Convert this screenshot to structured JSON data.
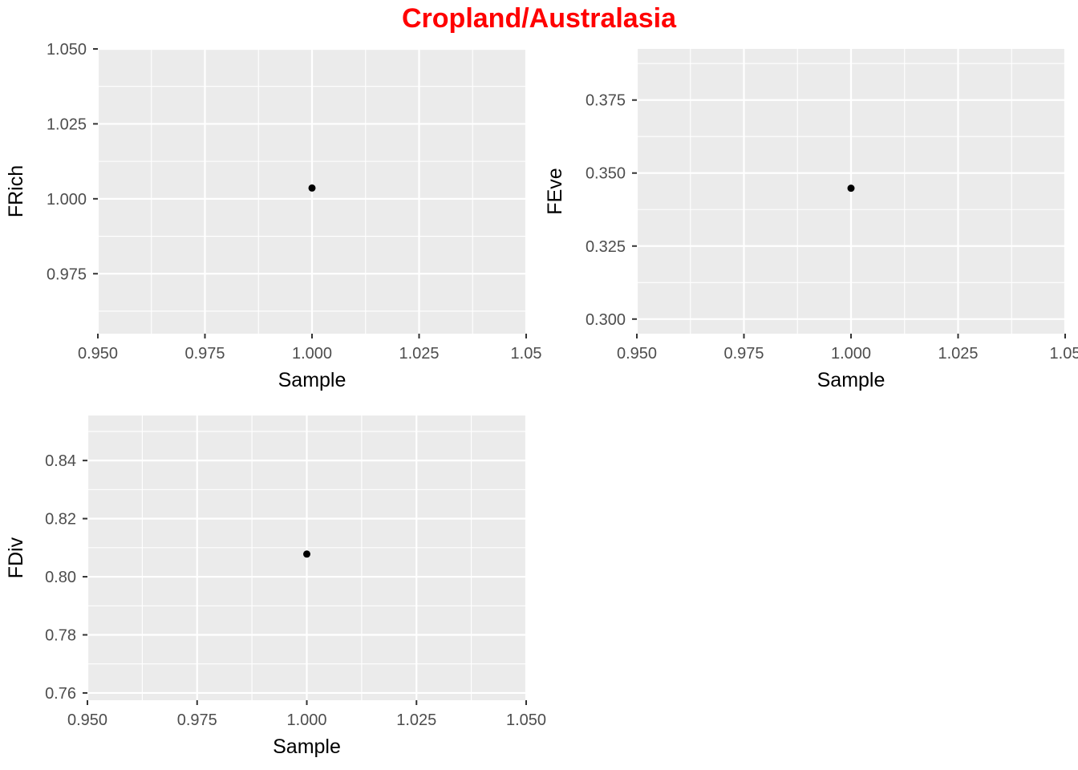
{
  "title": "Cropland/Australasia",
  "colors": {
    "title": "#ff0000",
    "panel_background": "#ebebeb",
    "grid": "#ffffff",
    "point": "#000000",
    "tick_text": "#4d4d4d",
    "axis_text": "#000000"
  },
  "chart_data": [
    {
      "type": "scatter",
      "xlabel": "Sample",
      "ylabel": "FRich",
      "xlim": [
        0.95,
        1.05
      ],
      "ylim": [
        0.955,
        1.05
      ],
      "x_ticks": [
        0.95,
        0.975,
        1.0,
        1.025,
        1.05
      ],
      "x_tick_labels": [
        "0.950",
        "0.975",
        "1.000",
        "1.025",
        "1.05"
      ],
      "y_ticks": [
        0.975,
        1.0,
        1.025,
        1.05
      ],
      "y_tick_labels": [
        "0.975",
        "1.000",
        "1.025",
        "1.050"
      ],
      "points": [
        {
          "x": 1.0,
          "y": 1.0036
        }
      ],
      "grid": true
    },
    {
      "type": "scatter",
      "xlabel": "Sample",
      "ylabel": "FEve",
      "xlim": [
        0.95,
        1.05
      ],
      "ylim": [
        0.295,
        0.3925
      ],
      "x_ticks": [
        0.95,
        0.975,
        1.0,
        1.025,
        1.05
      ],
      "x_tick_labels": [
        "0.950",
        "0.975",
        "1.000",
        "1.025",
        "1.05"
      ],
      "y_ticks": [
        0.3,
        0.325,
        0.35,
        0.375
      ],
      "y_tick_labels": [
        "0.300",
        "0.325",
        "0.350",
        "0.375"
      ],
      "points": [
        {
          "x": 1.0,
          "y": 0.3448
        }
      ],
      "grid": true
    },
    {
      "type": "scatter",
      "xlabel": "Sample",
      "ylabel": "FDiv",
      "xlim": [
        0.95,
        1.05
      ],
      "ylim": [
        0.7575,
        0.8555
      ],
      "x_ticks": [
        0.95,
        0.975,
        1.0,
        1.025,
        1.05
      ],
      "x_tick_labels": [
        "0.950",
        "0.975",
        "1.000",
        "1.025",
        "1.050"
      ],
      "y_ticks": [
        0.76,
        0.78,
        0.8,
        0.82,
        0.84
      ],
      "y_tick_labels": [
        "0.76",
        "0.78",
        "0.80",
        "0.82",
        "0.84"
      ],
      "points": [
        {
          "x": 1.0,
          "y": 0.8078
        }
      ],
      "grid": true
    }
  ]
}
